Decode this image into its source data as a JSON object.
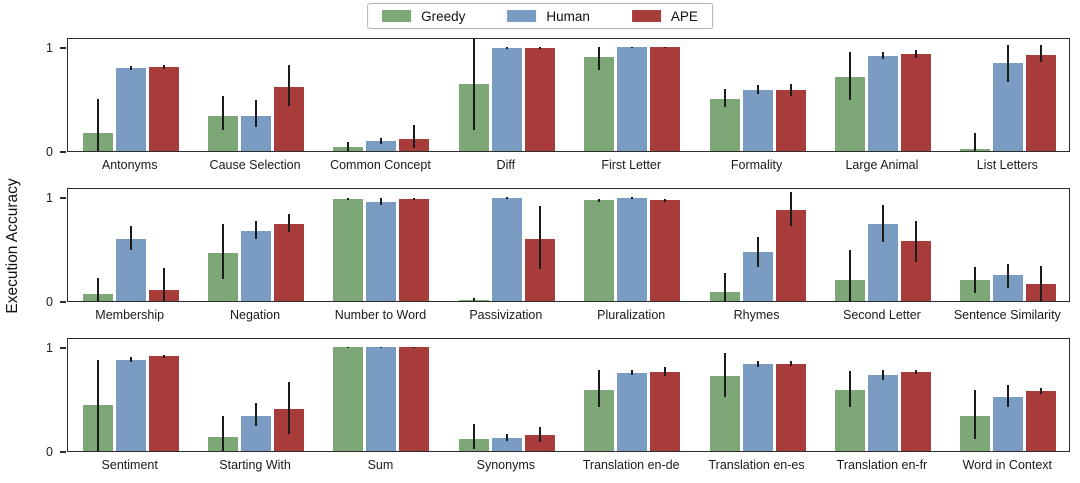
{
  "chart_data": {
    "type": "bar",
    "title": "",
    "ylabel": "Execution Accuracy",
    "xlabel": "",
    "ylim": [
      0,
      1.1
    ],
    "yticks": [
      0,
      1
    ],
    "grid": false,
    "legend_position": "top-center",
    "error_bars": true,
    "error_bar_color": "#1c1c1c",
    "legend": [
      {
        "label": "Greedy",
        "color": "#7EA778"
      },
      {
        "label": "Human",
        "color": "#7A9CC2"
      },
      {
        "label": "APE",
        "color": "#A73C3B"
      }
    ],
    "rows": [
      {
        "categories": [
          "Antonyms",
          "Cause Selection",
          "Common Concept",
          "Diff",
          "First Letter",
          "Formality",
          "Large Animal",
          "List Letters"
        ],
        "series": [
          {
            "name": "Greedy",
            "values": [
              0.17,
              0.34,
              0.04,
              0.65,
              0.91,
              0.5,
              0.71,
              0.02
            ],
            "errors": [
              [
                0.0,
                0.5
              ],
              [
                0.2,
                0.53
              ],
              [
                0.0,
                0.09
              ],
              [
                0.2,
                1.08
              ],
              [
                0.78,
                1.0
              ],
              [
                0.42,
                0.6
              ],
              [
                0.49,
                0.96
              ],
              [
                0.0,
                0.17
              ]
            ]
          },
          {
            "name": "Human",
            "values": [
              0.8,
              0.34,
              0.1,
              0.99,
              1.0,
              0.59,
              0.92,
              0.85
            ],
            "errors": [
              [
                0.78,
                0.82
              ],
              [
                0.23,
                0.49
              ],
              [
                0.07,
                0.13
              ],
              [
                0.98,
                1.0
              ],
              [
                0.99,
                1.0
              ],
              [
                0.55,
                0.64
              ],
              [
                0.89,
                0.96
              ],
              [
                0.67,
                1.02
              ]
            ]
          },
          {
            "name": "APE",
            "values": [
              0.81,
              0.62,
              0.12,
              0.99,
              1.0,
              0.59,
              0.94,
              0.93
            ],
            "errors": [
              [
                0.79,
                0.83
              ],
              [
                0.43,
                0.83
              ],
              [
                0.03,
                0.25
              ],
              [
                0.98,
                1.0
              ],
              [
                0.99,
                1.0
              ],
              [
                0.53,
                0.65
              ],
              [
                0.9,
                0.97
              ],
              [
                0.86,
                1.02
              ]
            ]
          }
        ]
      },
      {
        "categories": [
          "Membership",
          "Negation",
          "Number to Word",
          "Passivization",
          "Pluralization",
          "Rhymes",
          "Second Letter",
          "Sentence Similarity"
        ],
        "series": [
          {
            "name": "Greedy",
            "values": [
              0.07,
              0.46,
              0.98,
              0.01,
              0.97,
              0.09,
              0.2,
              0.2
            ],
            "errors": [
              [
                0.0,
                0.22
              ],
              [
                0.21,
                0.74
              ],
              [
                0.97,
                0.99
              ],
              [
                0.0,
                0.03
              ],
              [
                0.96,
                0.98
              ],
              [
                0.0,
                0.27
              ],
              [
                0.0,
                0.49
              ],
              [
                0.08,
                0.33
              ]
            ]
          },
          {
            "name": "Human",
            "values": [
              0.6,
              0.68,
              0.96,
              0.99,
              0.99,
              0.47,
              0.74,
              0.25
            ],
            "errors": [
              [
                0.49,
                0.72
              ],
              [
                0.6,
                0.77
              ],
              [
                0.93,
                0.99
              ],
              [
                0.98,
                1.0
              ],
              [
                0.98,
                1.0
              ],
              [
                0.33,
                0.62
              ],
              [
                0.57,
                0.93
              ],
              [
                0.13,
                0.36
              ]
            ]
          },
          {
            "name": "APE",
            "values": [
              0.11,
              0.74,
              0.98,
              0.6,
              0.97,
              0.88,
              0.58,
              0.16
            ],
            "errors": [
              [
                0.0,
                0.32
              ],
              [
                0.67,
                0.84
              ],
              [
                0.97,
                0.99
              ],
              [
                0.31,
                0.92
              ],
              [
                0.96,
                0.98
              ],
              [
                0.72,
                1.05
              ],
              [
                0.38,
                0.77
              ],
              [
                0.0,
                0.34
              ]
            ]
          }
        ]
      },
      {
        "categories": [
          "Sentiment",
          "Starting With",
          "Sum",
          "Synonyms",
          "Translation en-de",
          "Translation en-es",
          "Translation en-fr",
          "Word in Context"
        ],
        "series": [
          {
            "name": "Greedy",
            "values": [
              0.44,
              0.14,
              1.0,
              0.12,
              0.59,
              0.72,
              0.59,
              0.34
            ],
            "errors": [
              [
                0.0,
                0.88
              ],
              [
                0.0,
                0.34
              ],
              [
                0.99,
                1.0
              ],
              [
                0.02,
                0.26
              ],
              [
                0.42,
                0.78
              ],
              [
                0.52,
                0.95
              ],
              [
                0.42,
                0.77
              ],
              [
                0.12,
                0.59
              ]
            ]
          },
          {
            "name": "Human",
            "values": [
              0.88,
              0.34,
              1.0,
              0.13,
              0.75,
              0.84,
              0.73,
              0.52
            ],
            "errors": [
              [
                0.86,
                0.91
              ],
              [
                0.24,
                0.46
              ],
              [
                0.99,
                1.0
              ],
              [
                0.1,
                0.16
              ],
              [
                0.73,
                0.78
              ],
              [
                0.81,
                0.87
              ],
              [
                0.69,
                0.78
              ],
              [
                0.42,
                0.64
              ]
            ]
          },
          {
            "name": "APE",
            "values": [
              0.92,
              0.41,
              1.0,
              0.15,
              0.76,
              0.84,
              0.76,
              0.58
            ],
            "errors": [
              [
                0.9,
                0.93
              ],
              [
                0.16,
                0.67
              ],
              [
                0.99,
                1.0
              ],
              [
                0.09,
                0.23
              ],
              [
                0.72,
                0.81
              ],
              [
                0.82,
                0.87
              ],
              [
                0.74,
                0.78
              ],
              [
                0.55,
                0.61
              ]
            ]
          }
        ]
      }
    ]
  }
}
